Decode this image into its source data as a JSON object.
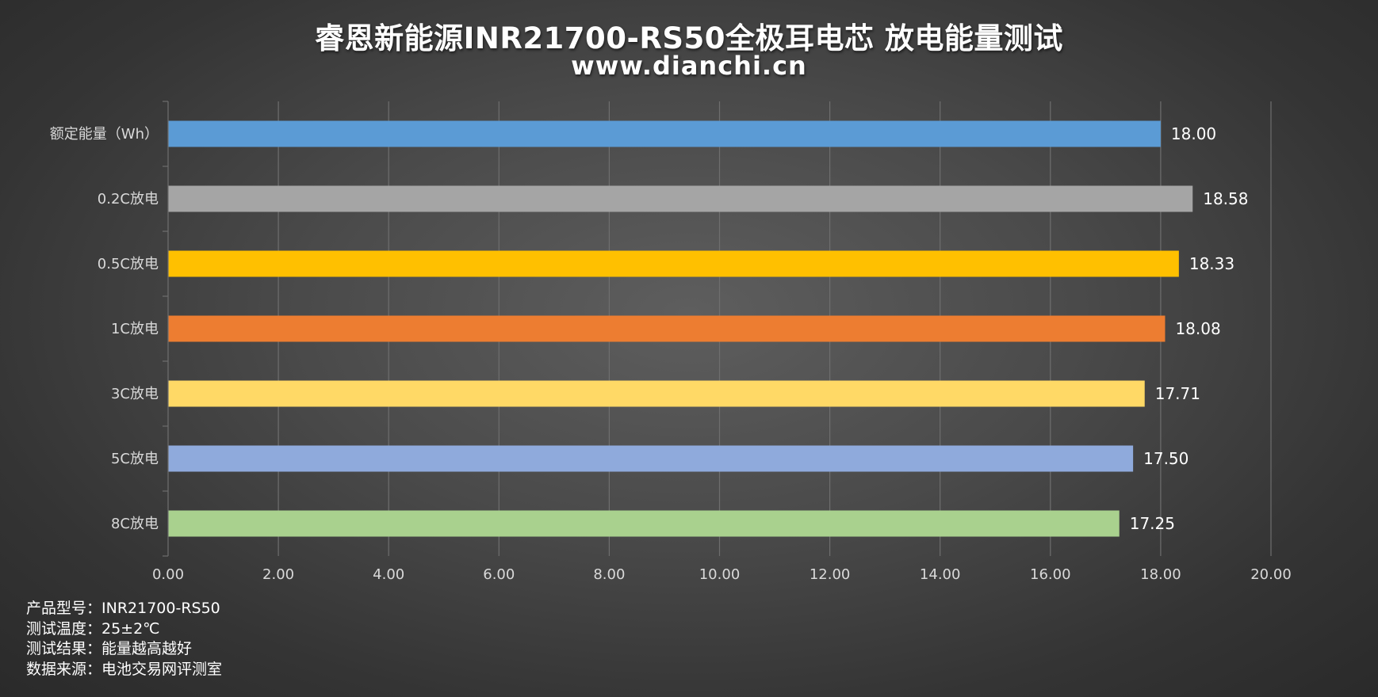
{
  "title": "睿恩新能源INR21700-RS50全极耳电芯 放电能量测试",
  "subtitle": "www.dianchi.cn",
  "colors": {
    "axis_text": "#d9d9d9",
    "grid": "#6e6e6e",
    "label_text": "#ffffff"
  },
  "chart_data": {
    "type": "bar",
    "orientation": "horizontal",
    "categories": [
      "额定能量（Wh）",
      "0.2C放电",
      "0.5C放电",
      "1C放电",
      "3C放电",
      "5C放电",
      "8C放电"
    ],
    "values": [
      18.0,
      18.58,
      18.33,
      18.08,
      17.71,
      17.5,
      17.25
    ],
    "value_labels": [
      "18.00",
      "18.58",
      "18.33",
      "18.08",
      "17.71",
      "17.50",
      "17.25"
    ],
    "bar_colors": [
      "#5b9bd5",
      "#a5a5a5",
      "#ffc000",
      "#ed7d31",
      "#ffd966",
      "#8faadc",
      "#a9d18e"
    ],
    "xlim": [
      0,
      20
    ],
    "xticks": [
      0,
      2,
      4,
      6,
      8,
      10,
      12,
      14,
      16,
      18,
      20
    ],
    "xtick_labels": [
      "0.00",
      "2.00",
      "4.00",
      "6.00",
      "8.00",
      "10.00",
      "12.00",
      "14.00",
      "16.00",
      "18.00",
      "20.00"
    ],
    "grid": true,
    "legend": "none"
  },
  "notes": [
    "产品型号：INR21700-RS50",
    "测试温度：25±2℃",
    "测试结果：能量越高越好",
    "数据来源：电池交易网评测室"
  ]
}
